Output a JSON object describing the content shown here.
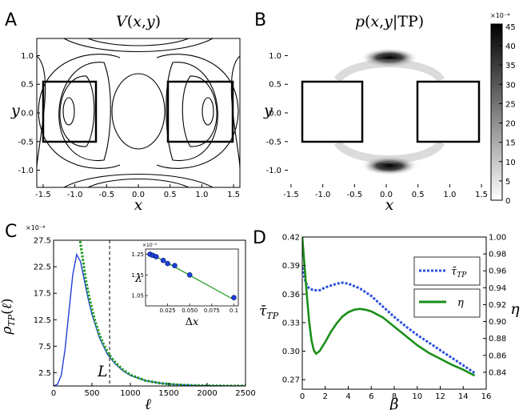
{
  "panels": {
    "A": {
      "letter": "A",
      "title": "V(x,y)",
      "xlabel": "x",
      "ylabel": "y"
    },
    "B": {
      "letter": "B",
      "title": "p(x,y|TP)",
      "xlabel": "x",
      "ylabel": "y"
    },
    "C": {
      "letter": "C",
      "xlabel": "ℓ",
      "ylabel": "ρTP(ℓ)",
      "annotation": "L",
      "exponent": "×10⁻⁴"
    },
    "D": {
      "letter": "D",
      "xlabel": "β",
      "ylabel_left": "τ̄TP",
      "ylabel_right": "η"
    }
  },
  "colorbar": {
    "exponent": "×10⁻⁴",
    "ticks": [
      "45",
      "40",
      "35",
      "30",
      "25",
      "20",
      "15",
      "10",
      "5",
      "0"
    ]
  },
  "chart_data": [
    {
      "type": "contour",
      "panel": "A",
      "title": "V(x,y)",
      "xlabel": "x",
      "ylabel": "y",
      "xlim": [
        -1.6,
        1.6
      ],
      "ylim": [
        -1.3,
        1.3
      ],
      "xticks": [
        "-1.5",
        "-1.0",
        "-0.5",
        "0.0",
        "0.5",
        "1.0",
        "1.5"
      ],
      "yticks": [
        "1.0",
        "0.5",
        "0.0",
        "-0.5",
        "-1.0"
      ],
      "boxes": [
        {
          "name": "left state",
          "x": [
            -1.5,
            -0.5
          ],
          "y": [
            -0.5,
            0.5
          ]
        },
        {
          "name": "right state",
          "x": [
            0.5,
            1.5
          ],
          "y": [
            -0.5,
            0.5
          ]
        }
      ]
    },
    {
      "type": "heatmap",
      "panel": "B",
      "title": "p(x,y|TP)",
      "xlabel": "x",
      "ylabel": "y",
      "xlim": [
        -1.6,
        1.6
      ],
      "ylim": [
        -1.3,
        1.3
      ],
      "xticks": [
        "-1.5",
        "-1.0",
        "-0.5",
        "0.0",
        "0.5",
        "1.0",
        "1.5"
      ],
      "yticks": [
        "1.0",
        "0.5",
        "0.0",
        "-0.5",
        "-1.0"
      ],
      "colorbar_range": [
        0,
        45
      ],
      "colormap": "gray_r",
      "boxes": [
        {
          "name": "left state",
          "x": [
            -1.5,
            -0.5
          ],
          "y": [
            -0.5,
            0.5
          ]
        },
        {
          "name": "right state",
          "x": [
            0.5,
            1.5
          ],
          "y": [
            -0.5,
            0.5
          ]
        }
      ]
    },
    {
      "type": "line",
      "panel": "C",
      "xlabel": "ℓ",
      "ylabel": "ρTP(ℓ)",
      "xlim": [
        0,
        2500
      ],
      "ylim": [
        0,
        27.5
      ],
      "xticks": [
        "0",
        "500",
        "1000",
        "1500",
        "2000",
        "2500"
      ],
      "yticks": [
        "27.5",
        "22.5",
        "17.5",
        "12.5",
        "7.5",
        "2.5"
      ],
      "vline_x": 730,
      "series": [
        {
          "color": "#1f3fd6",
          "style": "solid",
          "x": [
            0,
            50,
            100,
            150,
            200,
            250,
            300,
            350,
            400,
            450,
            500,
            600,
            700,
            800,
            900,
            1000,
            1200,
            1400,
            1600,
            1800,
            2000,
            2200,
            2500
          ],
          "y": [
            0,
            0.3,
            2,
            7,
            14,
            21,
            24.8,
            23.5,
            20,
            16.5,
            13.5,
            9,
            6,
            4.2,
            2.9,
            2,
            1,
            0.5,
            0.25,
            0.12,
            0.06,
            0.03,
            0.01
          ]
        },
        {
          "color": "#1a9a1a",
          "style": "dotted",
          "x": [
            340,
            380,
            420,
            460,
            500,
            550,
            600,
            650,
            700,
            750,
            800,
            900,
            1000,
            1200,
            1400,
            1600,
            1800,
            2000,
            2200,
            2500
          ],
          "y": [
            28,
            24,
            20,
            17,
            14.5,
            11.8,
            9.6,
            7.9,
            6.5,
            5.4,
            4.5,
            3.1,
            2.1,
            1,
            0.5,
            0.25,
            0.12,
            0.06,
            0.03,
            0.01
          ]
        }
      ],
      "inset": {
        "type": "line",
        "xlabel": "Δx",
        "ylabel": "λ",
        "xlim": [
          0,
          0.105
        ],
        "ylim": [
          1.0,
          1.275
        ],
        "xticks": [
          "0.025",
          "0.050",
          "0.075",
          "0.1"
        ],
        "yticks": [
          "1.25",
          "1.15",
          "1.05"
        ],
        "exponent": "×10⁻²",
        "points": {
          "x": [
            0.005,
            0.008,
            0.012,
            0.02,
            0.025,
            0.033,
            0.05,
            0.1
          ],
          "y": [
            1.25,
            1.245,
            1.238,
            1.22,
            1.205,
            1.195,
            1.15,
            1.04
          ]
        },
        "fit": {
          "x": [
            0.005,
            0.1
          ],
          "y": [
            1.255,
            1.03
          ]
        }
      }
    },
    {
      "type": "line",
      "panel": "D",
      "xlabel": "β",
      "xlim": [
        0,
        16
      ],
      "y_left": {
        "label": "τ̄TP",
        "lim": [
          0.26,
          0.42
        ],
        "ticks": [
          "0.42",
          "0.39",
          "0.36",
          "0.33",
          "0.30",
          "0.27"
        ]
      },
      "y_right": {
        "label": "η",
        "lim": [
          0.82,
          1.0
        ],
        "ticks": [
          "1.00",
          "0.98",
          "0.96",
          "0.94",
          "0.92",
          "0.90",
          "0.88",
          "0.86",
          "0.84"
        ]
      },
      "xticks": [
        "0",
        "2",
        "4",
        "6",
        "8",
        "10",
        "12",
        "14",
        "16"
      ],
      "series": [
        {
          "name": "τ̄TP",
          "color": "#2a4fe0",
          "style": "dotted",
          "axis": "left",
          "x": [
            0,
            0.3,
            0.6,
            1,
            1.5,
            2,
            2.5,
            3,
            3.5,
            4,
            5,
            6,
            7,
            8,
            9,
            10,
            11,
            12,
            13,
            14,
            15
          ],
          "y": [
            0.388,
            0.372,
            0.366,
            0.364,
            0.364,
            0.367,
            0.369,
            0.371,
            0.372,
            0.371,
            0.366,
            0.358,
            0.347,
            0.336,
            0.326,
            0.317,
            0.309,
            0.301,
            0.293,
            0.285,
            0.277
          ]
        },
        {
          "name": "η",
          "color": "#1a8f1a",
          "style": "solid",
          "axis": "right",
          "x": [
            0,
            0.2,
            0.4,
            0.6,
            0.8,
            1,
            1.2,
            1.5,
            2,
            2.5,
            3,
            3.5,
            4,
            4.5,
            5,
            5.5,
            6,
            7,
            8,
            9,
            10,
            11,
            12,
            13,
            14,
            15
          ],
          "y": [
            1.0,
            0.965,
            0.93,
            0.9,
            0.878,
            0.866,
            0.862,
            0.865,
            0.876,
            0.888,
            0.898,
            0.906,
            0.911,
            0.914,
            0.915,
            0.914,
            0.912,
            0.905,
            0.894,
            0.883,
            0.872,
            0.863,
            0.856,
            0.849,
            0.843,
            0.836
          ]
        }
      ],
      "legend": {
        "placement": "right",
        "entries": [
          "τ̄TP",
          "η"
        ]
      }
    }
  ]
}
